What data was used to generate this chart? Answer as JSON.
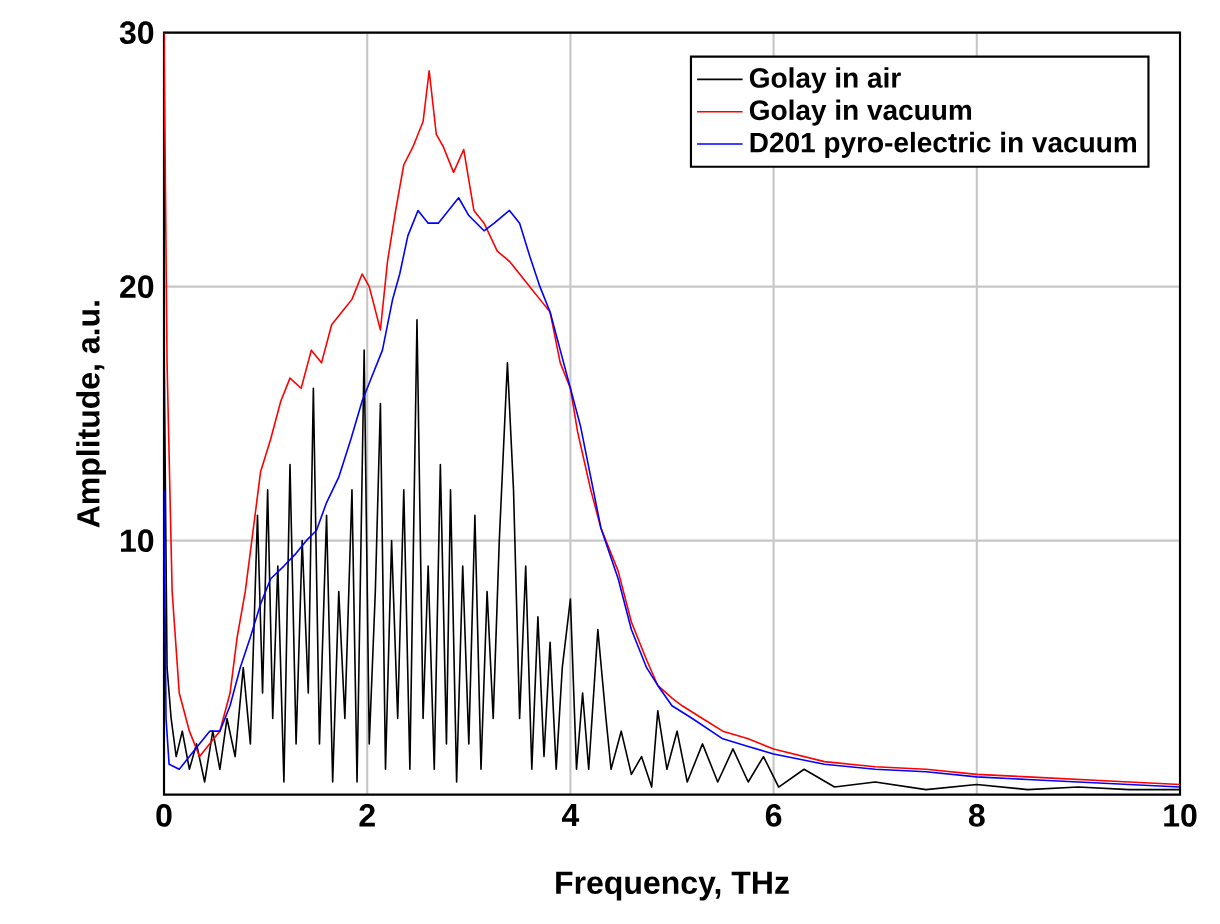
{
  "chart_data": {
    "type": "line",
    "xlabel": "Frequency, THz",
    "ylabel": "Amplitude, a.u.",
    "xlim": [
      0,
      10
    ],
    "ylim": [
      0,
      30
    ],
    "xticks": [
      0,
      2,
      4,
      6,
      8,
      10
    ],
    "yticks": [
      10,
      20,
      30
    ],
    "grid": true,
    "legend": "top right",
    "marker": "none",
    "line_style": "solid",
    "series": [
      {
        "name": "Golay in air",
        "color": "#000000",
        "x": [
          0,
          0.03,
          0.07,
          0.12,
          0.18,
          0.25,
          0.32,
          0.4,
          0.48,
          0.55,
          0.62,
          0.7,
          0.78,
          0.85,
          0.92,
          0.97,
          1.02,
          1.07,
          1.12,
          1.18,
          1.24,
          1.3,
          1.36,
          1.42,
          1.47,
          1.53,
          1.6,
          1.66,
          1.72,
          1.78,
          1.85,
          1.9,
          1.97,
          2.02,
          2.08,
          2.13,
          2.18,
          2.24,
          2.3,
          2.36,
          2.42,
          2.49,
          2.55,
          2.6,
          2.66,
          2.72,
          2.78,
          2.82,
          2.88,
          2.94,
          3.0,
          3.06,
          3.12,
          3.18,
          3.24,
          3.3,
          3.38,
          3.44,
          3.5,
          3.56,
          3.62,
          3.68,
          3.74,
          3.8,
          3.86,
          3.92,
          4.0,
          4.06,
          4.12,
          4.18,
          4.27,
          4.35,
          4.4,
          4.5,
          4.6,
          4.7,
          4.8,
          4.86,
          4.95,
          5.05,
          5.15,
          5.3,
          5.45,
          5.6,
          5.75,
          5.9,
          6.05,
          6.3,
          6.6,
          7,
          7.5,
          8,
          8.5,
          9,
          9.5,
          10
        ],
        "values": [
          18,
          5,
          3,
          1.5,
          2.5,
          1,
          2,
          0.5,
          2.5,
          1,
          3,
          1.5,
          5,
          2,
          11,
          4,
          12,
          3,
          9,
          0.5,
          13,
          2,
          10,
          4,
          16,
          2,
          11,
          0.5,
          8,
          3,
          12,
          0.5,
          17.5,
          2,
          8,
          15.4,
          1,
          10,
          3,
          12,
          1,
          18.7,
          3,
          9,
          1,
          13,
          2,
          12,
          0.5,
          9,
          2,
          11,
          1,
          8,
          3,
          10,
          17,
          12,
          3,
          9,
          1,
          7,
          1.5,
          6,
          1,
          5,
          7.7,
          1,
          4,
          1,
          6.5,
          3,
          1,
          2.5,
          0.8,
          1.5,
          0.3,
          3.3,
          1,
          2.5,
          0.5,
          2,
          0.5,
          1.8,
          0.5,
          1.5,
          0.3,
          1,
          0.3,
          0.5,
          0.2,
          0.4,
          0.2,
          0.3,
          0.2,
          0.2
        ]
      },
      {
        "name": "Golay in vacuum",
        "color": "#ff0000",
        "x": [
          0,
          0.03,
          0.08,
          0.15,
          0.25,
          0.35,
          0.45,
          0.55,
          0.65,
          0.72,
          0.8,
          0.88,
          0.95,
          1.05,
          1.15,
          1.24,
          1.35,
          1.45,
          1.55,
          1.65,
          1.75,
          1.85,
          1.95,
          2.02,
          2.13,
          2.2,
          2.28,
          2.36,
          2.45,
          2.55,
          2.61,
          2.68,
          2.75,
          2.85,
          2.95,
          3.05,
          3.15,
          3.28,
          3.4,
          3.5,
          3.6,
          3.7,
          3.8,
          3.9,
          4.0,
          4.07,
          4.2,
          4.3,
          4.47,
          4.6,
          4.75,
          4.86,
          5.0,
          5.1,
          5.3,
          5.5,
          5.75,
          6.0,
          6.5,
          7,
          7.5,
          8,
          8.5,
          9,
          9.5,
          10
        ],
        "values": [
          30,
          17,
          8,
          4,
          2.5,
          1.5,
          2,
          2.5,
          4,
          6.2,
          8,
          10.5,
          12.7,
          14,
          15.5,
          16.4,
          16,
          17.5,
          17,
          18.5,
          19,
          19.5,
          20.5,
          20,
          18.3,
          21,
          23,
          24.8,
          25.5,
          26.5,
          28.5,
          26,
          25.5,
          24.5,
          25.4,
          23,
          22.5,
          21.4,
          21,
          20.5,
          20,
          19.5,
          19,
          17,
          16,
          14.3,
          12,
          10.5,
          8.8,
          6.8,
          5.3,
          4.3,
          3.8,
          3.5,
          3,
          2.5,
          2.2,
          1.8,
          1.3,
          1.1,
          1.0,
          0.8,
          0.7,
          0.6,
          0.5,
          0.4
        ]
      },
      {
        "name": "D201 pyro-electric in vacuum",
        "color": "#0000ff",
        "x": [
          0,
          0.02,
          0.05,
          0.15,
          0.25,
          0.35,
          0.45,
          0.55,
          0.65,
          0.75,
          0.85,
          0.95,
          1.05,
          1.18,
          1.3,
          1.4,
          1.5,
          1.6,
          1.72,
          1.84,
          1.95,
          2.05,
          2.15,
          2.25,
          2.32,
          2.4,
          2.5,
          2.6,
          2.7,
          2.8,
          2.9,
          3.0,
          3.15,
          3.25,
          3.4,
          3.5,
          3.6,
          3.7,
          3.8,
          3.9,
          4.0,
          4.1,
          4.2,
          4.3,
          4.47,
          4.6,
          4.75,
          4.86,
          5.0,
          5.2,
          5.5,
          5.75,
          6.0,
          6.5,
          7,
          7.5,
          8,
          8.5,
          9,
          9.5,
          10
        ],
        "values": [
          12,
          3,
          1.2,
          1,
          1.5,
          2,
          2.5,
          2.5,
          3.5,
          5,
          6.2,
          7.5,
          8.5,
          9,
          9.5,
          10,
          10.4,
          11.5,
          12.5,
          14,
          15.5,
          16.5,
          17.5,
          19.5,
          20.5,
          22,
          23,
          22.5,
          22.5,
          23,
          23.5,
          22.8,
          22.2,
          22.5,
          23,
          22.5,
          21.2,
          20,
          19,
          17.5,
          16,
          14.5,
          12.5,
          10.5,
          8.5,
          6.5,
          5,
          4.3,
          3.5,
          3,
          2.2,
          1.9,
          1.6,
          1.2,
          1,
          0.9,
          0.7,
          0.6,
          0.5,
          0.4,
          0.3
        ]
      }
    ]
  }
}
